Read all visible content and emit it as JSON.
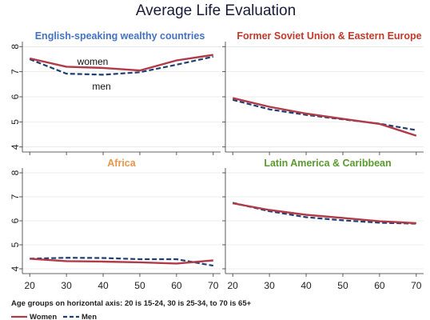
{
  "chart_data": {
    "type": "line",
    "title": "Average Life Evaluation",
    "note": "Age groups on horizontal axis: 20 is 15-24, 30 is 25-34, to 70 is 65+",
    "x": [
      20,
      30,
      40,
      50,
      60,
      70
    ],
    "xticks": [
      "20",
      "30",
      "40",
      "50",
      "60",
      "70"
    ],
    "yticks": [
      "4",
      "5",
      "6",
      "7",
      "8"
    ],
    "ylim": [
      3.8,
      8.2
    ],
    "xlim": [
      18,
      72
    ],
    "legend": {
      "women": "Women",
      "men": "Men",
      "placement": "bottom-left"
    },
    "colors": {
      "women": "#b03a48",
      "men": "#1f3f73",
      "axis": "#333333",
      "grid": "#dddddd"
    },
    "panels": [
      {
        "title": "English-speaking wealthy countries",
        "title_color": "#4472c4",
        "annotations": {
          "women": "women",
          "men": "men"
        },
        "series": [
          {
            "name": "Women",
            "values": [
              7.53,
              7.2,
              7.15,
              7.05,
              7.45,
              7.67
            ]
          },
          {
            "name": "Men",
            "values": [
              7.5,
              6.92,
              6.88,
              6.98,
              7.28,
              7.6
            ]
          }
        ]
      },
      {
        "title": "Former Soviet Union & Eastern Europe",
        "title_color": "#c0392b",
        "series": [
          {
            "name": "Women",
            "values": [
              5.95,
              5.6,
              5.33,
              5.12,
              4.92,
              4.45
            ]
          },
          {
            "name": "Men",
            "values": [
              5.88,
              5.5,
              5.28,
              5.1,
              4.93,
              4.67
            ]
          }
        ]
      },
      {
        "title": "Africa",
        "title_color": "#e8964a",
        "series": [
          {
            "name": "Women",
            "values": [
              4.42,
              4.32,
              4.3,
              4.27,
              4.22,
              4.35
            ]
          },
          {
            "name": "Men",
            "values": [
              4.42,
              4.46,
              4.45,
              4.4,
              4.4,
              4.13
            ]
          }
        ]
      },
      {
        "title": "Latin America & Caribbean",
        "title_color": "#5a9a2e",
        "series": [
          {
            "name": "Women",
            "values": [
              6.73,
              6.45,
              6.25,
              6.12,
              5.98,
              5.9
            ]
          },
          {
            "name": "Men",
            "values": [
              6.75,
              6.4,
              6.15,
              6.02,
              5.92,
              5.88
            ]
          }
        ]
      }
    ]
  }
}
